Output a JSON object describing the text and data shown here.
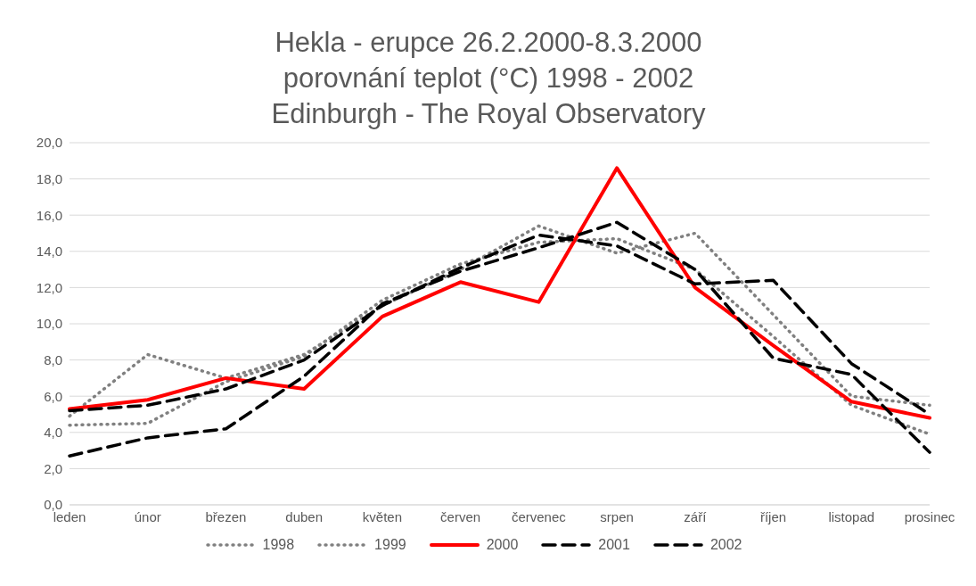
{
  "chart_data": {
    "type": "line",
    "title": "Hekla - erupce 26.2.2000-8.3.2000\nporovnání teplot (°C) 1998 - 2002\nEdinburgh - The Royal Observatory",
    "categories": [
      "leden",
      "únor",
      "březen",
      "duben",
      "květen",
      "červen",
      "červenec",
      "srpen",
      "září",
      "říjen",
      "listopad",
      "prosinec"
    ],
    "series": [
      {
        "name": "1998",
        "color": "#808080",
        "line_style": "dotted",
        "values": [
          4.9,
          8.3,
          7.0,
          8.3,
          11.0,
          13.0,
          15.4,
          13.9,
          15.0,
          10.5,
          6.0,
          5.5
        ]
      },
      {
        "name": "1999",
        "color": "#808080",
        "line_style": "dotted",
        "values": [
          4.4,
          4.5,
          6.8,
          8.2,
          11.3,
          13.3,
          14.5,
          14.7,
          13.0,
          9.3,
          5.5,
          3.9
        ]
      },
      {
        "name": "2000",
        "color": "#ff0000",
        "line_style": "solid",
        "values": [
          5.3,
          5.8,
          7.0,
          6.4,
          10.4,
          12.3,
          11.2,
          18.6,
          12.0,
          8.8,
          5.7,
          4.8
        ]
      },
      {
        "name": "2001",
        "color": "#000000",
        "line_style": "dashed",
        "values": [
          5.2,
          5.5,
          6.4,
          8.0,
          11.0,
          13.1,
          14.9,
          14.3,
          12.2,
          12.4,
          7.8,
          5.0
        ]
      },
      {
        "name": "2002",
        "color": "#000000",
        "line_style": "dashed",
        "values": [
          2.7,
          3.7,
          4.2,
          7.1,
          11.1,
          12.9,
          14.2,
          15.6,
          13.0,
          8.1,
          7.2,
          2.9
        ]
      }
    ],
    "ylim": [
      0,
      20
    ],
    "yticks": [
      {
        "value": 0,
        "label": "0,0"
      },
      {
        "value": 2,
        "label": "2,0"
      },
      {
        "value": 4,
        "label": "4,0"
      },
      {
        "value": 6,
        "label": "6,0"
      },
      {
        "value": 8,
        "label": "8,0"
      },
      {
        "value": 10,
        "label": "10,0"
      },
      {
        "value": 12,
        "label": "12,0"
      },
      {
        "value": 14,
        "label": "14,0"
      },
      {
        "value": 16,
        "label": "16,0"
      },
      {
        "value": 18,
        "label": "18,0"
      },
      {
        "value": 20,
        "label": "20,0"
      }
    ],
    "grid": "y",
    "legend": "bottom"
  }
}
